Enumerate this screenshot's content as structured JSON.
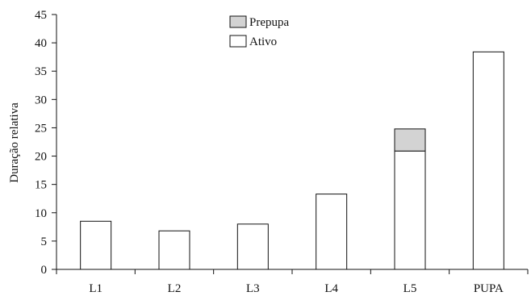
{
  "chart_data": {
    "type": "bar",
    "stacked": true,
    "categories": [
      "L1",
      "L2",
      "L3",
      "L4",
      "L5",
      "PUPA"
    ],
    "series": [
      {
        "name": "Ativo",
        "values": [
          8.5,
          6.8,
          8.0,
          13.3,
          20.9,
          38.4
        ],
        "color": "#ffffff"
      },
      {
        "name": "Prepupa",
        "values": [
          0,
          0,
          0,
          0,
          3.9,
          0
        ],
        "color": "#d3d3d3"
      }
    ],
    "ylabel": "Duração relativa",
    "xlabel": "",
    "ylim": [
      0,
      45
    ],
    "yticks": [
      0,
      5,
      10,
      15,
      20,
      25,
      30,
      35,
      40,
      45
    ],
    "grid": false,
    "legend": {
      "position": "top-center",
      "items": [
        {
          "label": "Prepupa",
          "color": "#d3d3d3"
        },
        {
          "label": "Ativo",
          "color": "#ffffff"
        }
      ]
    }
  }
}
